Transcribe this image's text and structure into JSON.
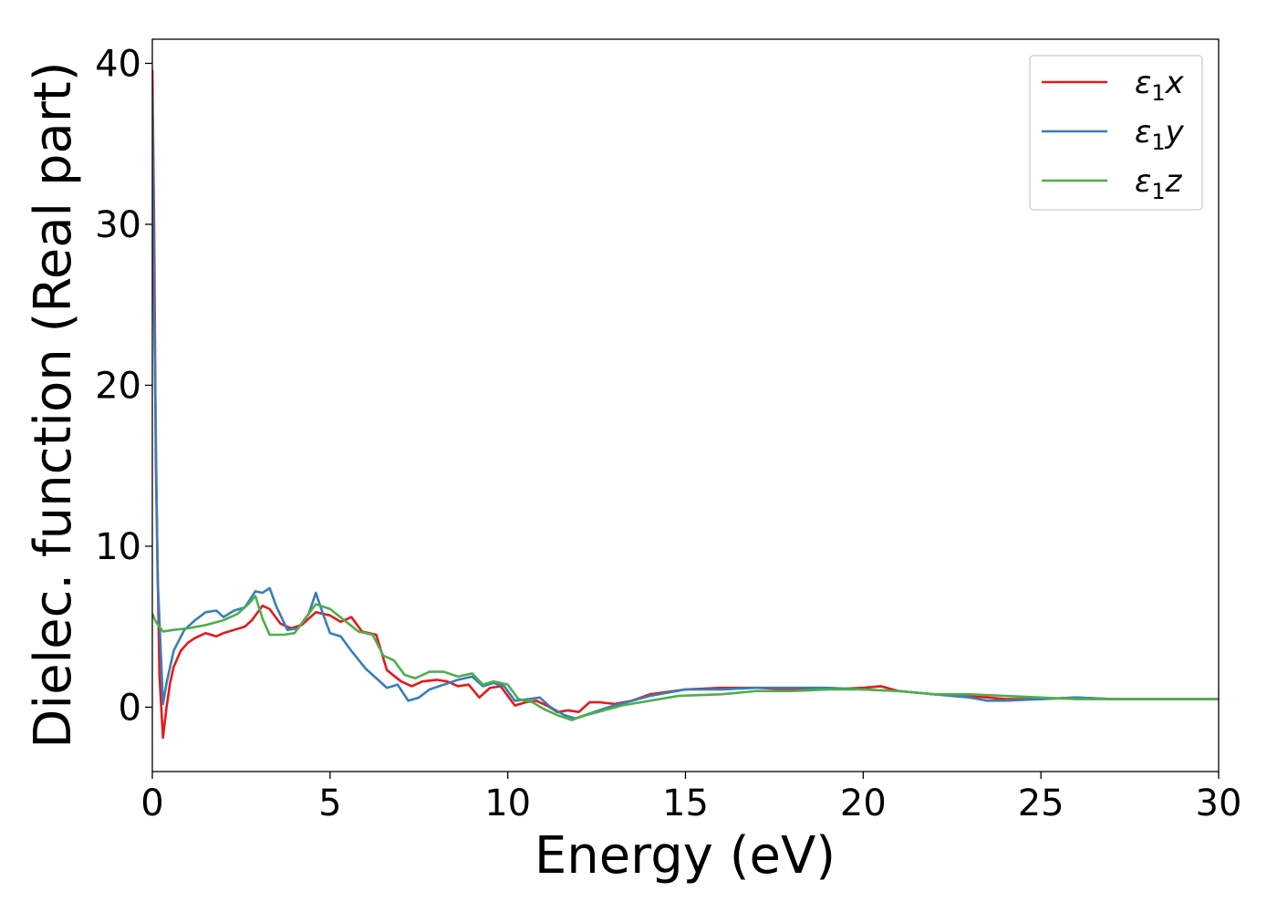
{
  "chart_data": {
    "type": "line",
    "title": "",
    "xlabel": "Energy (eV)",
    "ylabel": "Dielec. function (Real part)",
    "xlim": [
      0,
      30
    ],
    "ylim": [
      -4,
      41.5
    ],
    "xticks": [
      0,
      5,
      10,
      15,
      20,
      25,
      30
    ],
    "yticks": [
      0,
      10,
      20,
      30,
      40
    ],
    "grid": false,
    "legend_position": "top-right",
    "series": [
      {
        "name": "ε₁x",
        "legend_base": "ε",
        "legend_sub": "1",
        "legend_var": "x",
        "color": "#e41a1c",
        "points": [
          [
            0,
            39.6
          ],
          [
            0.05,
            30
          ],
          [
            0.1,
            15
          ],
          [
            0.2,
            2
          ],
          [
            0.3,
            -1.9
          ],
          [
            0.4,
            0
          ],
          [
            0.5,
            1.5
          ],
          [
            0.6,
            2.5
          ],
          [
            0.8,
            3.5
          ],
          [
            1,
            4
          ],
          [
            1.2,
            4.3
          ],
          [
            1.5,
            4.6
          ],
          [
            1.8,
            4.4
          ],
          [
            2,
            4.6
          ],
          [
            2.3,
            4.8
          ],
          [
            2.6,
            5
          ],
          [
            2.8,
            5.4
          ],
          [
            3.1,
            6.3
          ],
          [
            3.3,
            6.1
          ],
          [
            3.6,
            5.2
          ],
          [
            3.9,
            4.9
          ],
          [
            4.2,
            5.1
          ],
          [
            4.6,
            5.9
          ],
          [
            5.0,
            5.7
          ],
          [
            5.3,
            5.3
          ],
          [
            5.6,
            5.6
          ],
          [
            5.9,
            4.7
          ],
          [
            6.3,
            4.5
          ],
          [
            6.6,
            2.3
          ],
          [
            7.0,
            1.6
          ],
          [
            7.3,
            1.3
          ],
          [
            7.6,
            1.6
          ],
          [
            8.0,
            1.7
          ],
          [
            8.3,
            1.6
          ],
          [
            8.6,
            1.3
          ],
          [
            8.9,
            1.4
          ],
          [
            9.2,
            0.6
          ],
          [
            9.5,
            1.2
          ],
          [
            9.8,
            1.3
          ],
          [
            10.2,
            0.1
          ],
          [
            10.5,
            0.3
          ],
          [
            10.8,
            0.4
          ],
          [
            11.1,
            0.1
          ],
          [
            11.4,
            -0.3
          ],
          [
            11.7,
            -0.2
          ],
          [
            12.0,
            -0.3
          ],
          [
            12.3,
            0.3
          ],
          [
            12.6,
            0.3
          ],
          [
            13.0,
            0.2
          ],
          [
            13.5,
            0.4
          ],
          [
            14,
            0.8
          ],
          [
            15,
            1.1
          ],
          [
            16,
            1.2
          ],
          [
            17,
            1.2
          ],
          [
            18,
            1.1
          ],
          [
            19,
            1.1
          ],
          [
            20,
            1.2
          ],
          [
            20.5,
            1.3
          ],
          [
            21,
            1.0
          ],
          [
            22,
            0.8
          ],
          [
            23,
            0.7
          ],
          [
            24,
            0.5
          ],
          [
            25,
            0.5
          ],
          [
            26,
            0.6
          ],
          [
            27,
            0.5
          ],
          [
            28,
            0.5
          ],
          [
            29,
            0.5
          ],
          [
            30,
            0.5
          ]
        ]
      },
      {
        "name": "ε₁y",
        "legend_base": "ε",
        "legend_sub": "1",
        "legend_var": "y",
        "color": "#377eb8",
        "points": [
          [
            0,
            38
          ],
          [
            0.05,
            25
          ],
          [
            0.15,
            8
          ],
          [
            0.3,
            0.2
          ],
          [
            0.4,
            1.5
          ],
          [
            0.6,
            3.5
          ],
          [
            0.9,
            4.8
          ],
          [
            1.2,
            5.4
          ],
          [
            1.5,
            5.9
          ],
          [
            1.8,
            6
          ],
          [
            2.0,
            5.6
          ],
          [
            2.3,
            6.0
          ],
          [
            2.6,
            6.2
          ],
          [
            2.9,
            7.2
          ],
          [
            3.1,
            7.1
          ],
          [
            3.3,
            7.4
          ],
          [
            3.5,
            6.2
          ],
          [
            3.8,
            4.8
          ],
          [
            4.1,
            4.9
          ],
          [
            4.4,
            5.8
          ],
          [
            4.6,
            7.1
          ],
          [
            4.8,
            5.8
          ],
          [
            5.0,
            4.6
          ],
          [
            5.3,
            4.4
          ],
          [
            5.6,
            3.5
          ],
          [
            6.0,
            2.4
          ],
          [
            6.3,
            1.8
          ],
          [
            6.6,
            1.2
          ],
          [
            6.9,
            1.4
          ],
          [
            7.2,
            0.4
          ],
          [
            7.5,
            0.6
          ],
          [
            7.8,
            1.1
          ],
          [
            8.2,
            1.4
          ],
          [
            8.6,
            1.7
          ],
          [
            9.0,
            1.9
          ],
          [
            9.3,
            1.3
          ],
          [
            9.6,
            1.5
          ],
          [
            9.9,
            1.3
          ],
          [
            10.2,
            0.4
          ],
          [
            10.6,
            0.5
          ],
          [
            10.9,
            0.6
          ],
          [
            11.2,
            0.0
          ],
          [
            11.6,
            -0.5
          ],
          [
            11.9,
            -0.7
          ],
          [
            12.3,
            -0.4
          ],
          [
            12.7,
            -0.1
          ],
          [
            13,
            0.1
          ],
          [
            13.5,
            0.4
          ],
          [
            14,
            0.7
          ],
          [
            15,
            1.1
          ],
          [
            16,
            1.1
          ],
          [
            17,
            1.2
          ],
          [
            18,
            1.2
          ],
          [
            19,
            1.2
          ],
          [
            20,
            1.1
          ],
          [
            21,
            1.0
          ],
          [
            22,
            0.8
          ],
          [
            23,
            0.6
          ],
          [
            23.5,
            0.4
          ],
          [
            24,
            0.4
          ],
          [
            25,
            0.5
          ],
          [
            26,
            0.6
          ],
          [
            27,
            0.5
          ],
          [
            28,
            0.5
          ],
          [
            29,
            0.5
          ],
          [
            30,
            0.5
          ]
        ]
      },
      {
        "name": "ε₁z",
        "legend_base": "ε",
        "legend_sub": "1",
        "legend_var": "z",
        "color": "#4daf4a",
        "points": [
          [
            0,
            5.8
          ],
          [
            0.1,
            5.3
          ],
          [
            0.3,
            4.7
          ],
          [
            0.6,
            4.8
          ],
          [
            1.0,
            4.9
          ],
          [
            1.5,
            5.1
          ],
          [
            2.0,
            5.4
          ],
          [
            2.4,
            5.8
          ],
          [
            2.7,
            6.4
          ],
          [
            2.9,
            6.9
          ],
          [
            3.1,
            5.5
          ],
          [
            3.3,
            4.5
          ],
          [
            3.7,
            4.5
          ],
          [
            4.0,
            4.6
          ],
          [
            4.3,
            5.5
          ],
          [
            4.6,
            6.4
          ],
          [
            5.0,
            6.1
          ],
          [
            5.4,
            5.4
          ],
          [
            5.8,
            4.7
          ],
          [
            6.2,
            4.5
          ],
          [
            6.5,
            3.2
          ],
          [
            6.8,
            2.9
          ],
          [
            7.1,
            2.0
          ],
          [
            7.4,
            1.8
          ],
          [
            7.8,
            2.2
          ],
          [
            8.2,
            2.2
          ],
          [
            8.6,
            1.9
          ],
          [
            9.0,
            2.1
          ],
          [
            9.3,
            1.4
          ],
          [
            9.6,
            1.6
          ],
          [
            10.0,
            1.4
          ],
          [
            10.3,
            0.5
          ],
          [
            10.7,
            0.3
          ],
          [
            11.0,
            -0.1
          ],
          [
            11.4,
            -0.5
          ],
          [
            11.8,
            -0.8
          ],
          [
            12.2,
            -0.5
          ],
          [
            12.7,
            -0.2
          ],
          [
            13.2,
            0.1
          ],
          [
            14,
            0.4
          ],
          [
            14.8,
            0.7
          ],
          [
            16,
            0.8
          ],
          [
            17,
            1.0
          ],
          [
            18,
            1.0
          ],
          [
            19,
            1.1
          ],
          [
            20,
            1.1
          ],
          [
            21,
            1.0
          ],
          [
            22,
            0.8
          ],
          [
            23,
            0.8
          ],
          [
            24,
            0.7
          ],
          [
            25,
            0.6
          ],
          [
            26,
            0.5
          ],
          [
            27,
            0.5
          ],
          [
            28,
            0.5
          ],
          [
            29,
            0.5
          ],
          [
            30,
            0.5
          ]
        ]
      }
    ]
  }
}
